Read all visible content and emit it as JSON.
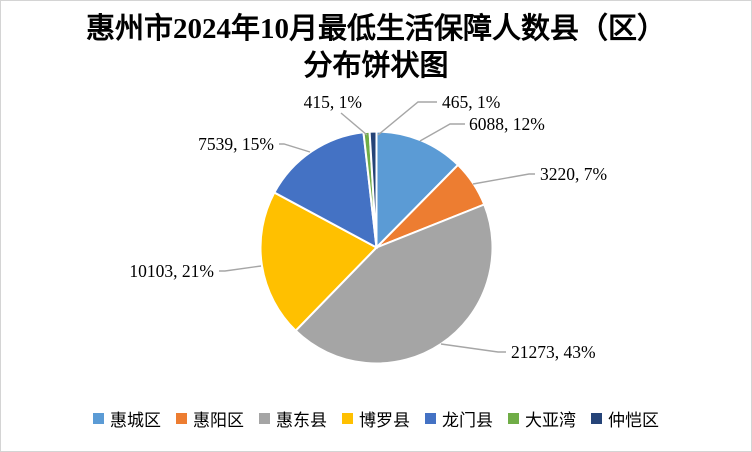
{
  "header": {
    "title_line1": "惠州市2024年10月最低生活保障人数县（区）",
    "title_line2": "分布饼状图"
  },
  "chart_data": {
    "type": "pie",
    "title": "惠州市2024年10月最低生活保障人数县（区）分布饼状图",
    "categories": [
      "惠城区",
      "惠阳区",
      "惠东县",
      "博罗县",
      "龙门县",
      "大亚湾",
      "仲恺区"
    ],
    "values": [
      6088,
      3220,
      21273,
      10103,
      7539,
      415,
      465
    ],
    "percent_labels": [
      "12%",
      "7%",
      "43%",
      "21%",
      "15%",
      "1%",
      "1%"
    ],
    "data_labels": [
      "6088, 12%",
      "3220, 7%",
      "21273, 43%",
      "10103, 21%",
      "7539, 15%",
      "415, 1%",
      "465, 1%"
    ],
    "colors": [
      "#5B9BD5",
      "#ED7D31",
      "#A5A5A5",
      "#FFC000",
      "#4472C4",
      "#70AD47",
      "#264478"
    ],
    "label_format": "value, percent",
    "legend_position": "bottom",
    "leader_line_color": "#A6A6A6",
    "slice_border_color": "#FFFFFF",
    "start_angle_deg": 0,
    "direction": "clockwise"
  }
}
